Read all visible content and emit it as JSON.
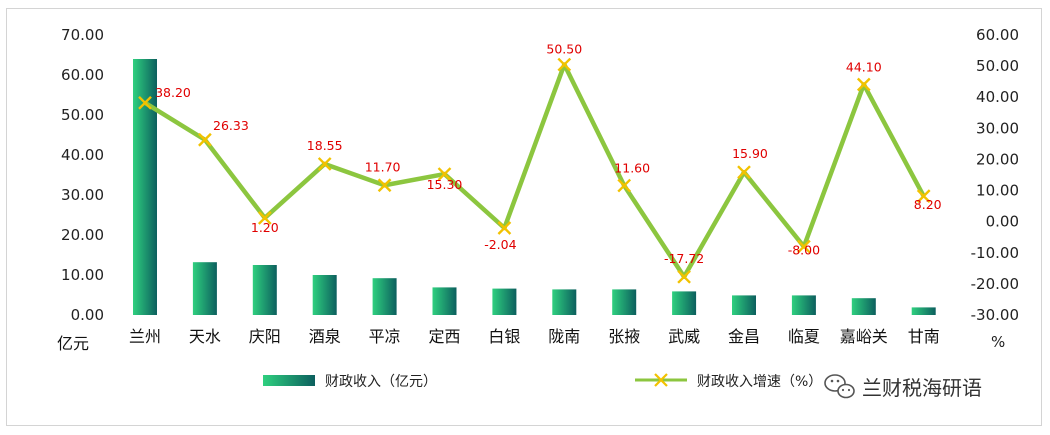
{
  "chart_data": {
    "type": "bar+line",
    "categories": [
      "兰州",
      "天水",
      "庆阳",
      "酒泉",
      "平凉",
      "定西",
      "白银",
      "陇南",
      "张掖",
      "武威",
      "金昌",
      "临夏",
      "嘉峪关",
      "甘南"
    ],
    "series": [
      {
        "name": "财政收入（亿元）",
        "type": "bar",
        "axis": "left",
        "values": [
          64.0,
          13.2,
          12.5,
          10.0,
          9.2,
          6.9,
          6.6,
          6.4,
          6.4,
          5.9,
          4.9,
          4.9,
          4.2,
          1.9
        ]
      },
      {
        "name": "财政收入增速（%）",
        "type": "line",
        "axis": "right",
        "values": [
          38.2,
          26.33,
          1.2,
          18.55,
          11.7,
          15.3,
          -2.04,
          50.5,
          11.6,
          -17.72,
          15.9,
          -8.0,
          44.1,
          8.2
        ],
        "labels": [
          "38.20",
          "26.33",
          "1.20",
          "18.55",
          "11.70",
          "15.30",
          "-2.04",
          "50.50",
          "11.60",
          "-17.72",
          "15.90",
          "-8.00",
          "44.10",
          "8.20"
        ]
      }
    ],
    "y_left": {
      "unit": "亿元",
      "range": [
        0,
        70
      ],
      "ticks": [
        "0.00",
        "10.00",
        "20.00",
        "30.00",
        "40.00",
        "50.00",
        "60.00",
        "70.00"
      ]
    },
    "y_right": {
      "unit": "%",
      "range": [
        -30,
        60
      ],
      "ticks": [
        "-30.00",
        "-20.00",
        "-10.00",
        "0.00",
        "10.00",
        "20.00",
        "30.00",
        "40.00",
        "50.00",
        "60.00"
      ]
    },
    "grid": false,
    "legend_position": "bottom",
    "colors": {
      "bar_light": "#2fd07f",
      "bar_dark": "#0c5f5e",
      "line": "#8cc63f",
      "marker": "#f2c200",
      "data_label": "#e00000"
    }
  },
  "watermark": {
    "text": "兰财税海研语",
    "icon": "wechat-icon"
  }
}
